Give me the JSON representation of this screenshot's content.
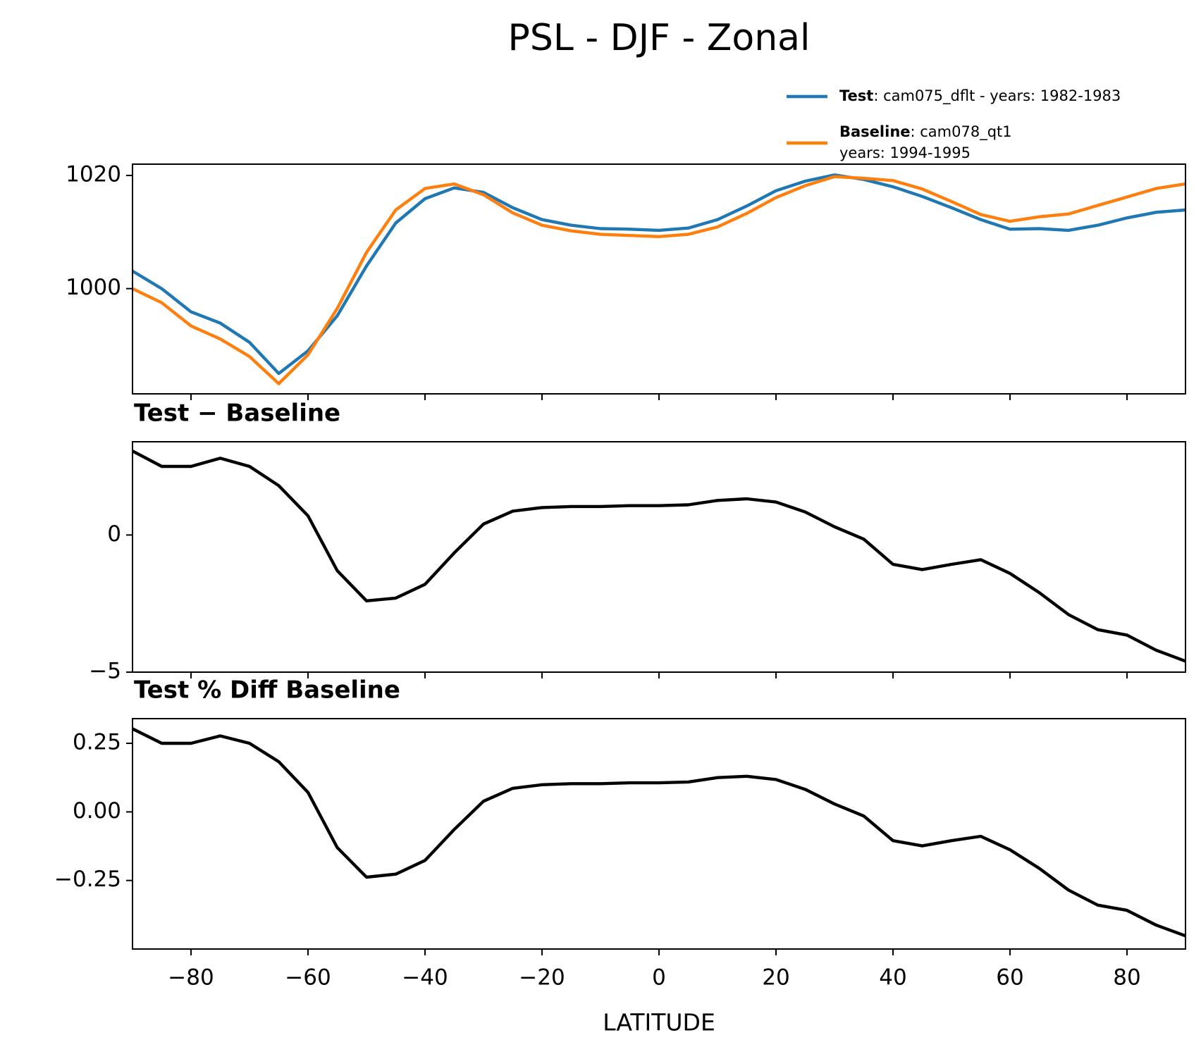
{
  "title": "PSL - DJF - Zonal",
  "chart_data": [
    {
      "type": "line",
      "x": [
        -90,
        -85,
        -80,
        -75,
        -70,
        -65,
        -60,
        -55,
        -50,
        -45,
        -40,
        -35,
        -30,
        -25,
        -20,
        -15,
        -10,
        -5,
        0,
        5,
        10,
        15,
        20,
        25,
        30,
        35,
        40,
        45,
        50,
        55,
        60,
        65,
        70,
        75,
        80,
        85,
        90
      ],
      "series": [
        {
          "name": "Test",
          "label": [
            ": cam075_dflt - years: 1982-1983"
          ],
          "color": "#1f77b4",
          "values": [
            1003.1,
            1000,
            995.9,
            993.9,
            990.5,
            985,
            989,
            995.2,
            1004,
            1011.6,
            1015.9,
            1017.8,
            1017,
            1014.3,
            1012.2,
            1011.2,
            1010.6,
            1010.5,
            1010.3,
            1010.7,
            1012.2,
            1014.6,
            1017.3,
            1019,
            1020.1,
            1019.3,
            1018,
            1016.3,
            1014.3,
            1012.2,
            1010.5,
            1010.6,
            1010.3,
            1011.2,
            1012.5,
            1013.5,
            1013.9
          ]
        },
        {
          "name": "Baseline",
          "label": [
            ": cam078_qt1",
            "years: 1994-1995"
          ],
          "color": "#ff7f0e",
          "values": [
            1000,
            997.5,
            993.4,
            991.1,
            988,
            983.2,
            988.3,
            996.5,
            1006.4,
            1013.9,
            1017.7,
            1018.5,
            1016.6,
            1013.4,
            1011.2,
            1010.2,
            1009.6,
            1009.4,
            1009.2,
            1009.6,
            1010.9,
            1013.3,
            1016.1,
            1018.2,
            1019.8,
            1019.5,
            1019.1,
            1017.6,
            1015.4,
            1013.1,
            1011.9,
            1012.7,
            1013.2,
            1014.7,
            1016.2,
            1017.7,
            1018.5
          ]
        }
      ],
      "ylim": [
        981.4,
        1022
      ],
      "yticks": [
        1000,
        1020
      ]
    },
    {
      "type": "line",
      "subtitle": "Test − Baseline",
      "x": [
        -90,
        -85,
        -80,
        -75,
        -70,
        -65,
        -60,
        -55,
        -50,
        -45,
        -40,
        -35,
        -30,
        -25,
        -20,
        -15,
        -10,
        -5,
        0,
        5,
        10,
        15,
        20,
        25,
        30,
        35,
        40,
        45,
        50,
        55,
        60,
        65,
        70,
        75,
        80,
        85,
        90
      ],
      "series": [
        {
          "color": "#000000",
          "values": [
            3.06,
            2.5,
            2.5,
            2.8,
            2.5,
            1.8,
            0.7,
            -1.3,
            -2.4,
            -2.3,
            -1.8,
            -0.65,
            0.4,
            0.87,
            1.0,
            1.04,
            1.04,
            1.07,
            1.07,
            1.1,
            1.26,
            1.32,
            1.2,
            0.84,
            0.3,
            -0.15,
            -1.07,
            -1.26,
            -1.07,
            -0.9,
            -1.4,
            -2.1,
            -2.9,
            -3.45,
            -3.65,
            -4.2,
            -4.6
          ]
        }
      ],
      "ylim": [
        -5,
        3.4
      ],
      "yticks": [
        {
          "value": -5,
          "label": "−5"
        },
        0
      ]
    },
    {
      "type": "line",
      "subtitle": "Test % Diff Baseline",
      "xlabel": "LATITUDE",
      "x": [
        -90,
        -85,
        -80,
        -75,
        -70,
        -65,
        -60,
        -55,
        -50,
        -45,
        -40,
        -35,
        -30,
        -25,
        -20,
        -15,
        -10,
        -5,
        0,
        5,
        10,
        15,
        20,
        25,
        30,
        35,
        40,
        45,
        50,
        55,
        60,
        65,
        70,
        75,
        80,
        85,
        90
      ],
      "series": [
        {
          "color": "#000000",
          "values": [
            0.303,
            0.25,
            0.25,
            0.277,
            0.25,
            0.183,
            0.071,
            -0.13,
            -0.238,
            -0.227,
            -0.177,
            -0.064,
            0.039,
            0.086,
            0.099,
            0.103,
            0.103,
            0.106,
            0.106,
            0.109,
            0.125,
            0.13,
            0.118,
            0.082,
            0.029,
            -0.015,
            -0.105,
            -0.124,
            -0.105,
            -0.089,
            -0.138,
            -0.206,
            -0.285,
            -0.34,
            -0.359,
            -0.413,
            -0.452
          ]
        }
      ],
      "xlim": [
        -90,
        90
      ],
      "xticks": [
        {
          "value": -80,
          "label": "−80"
        },
        {
          "value": -60,
          "label": "−60"
        },
        {
          "value": -40,
          "label": "−40"
        },
        {
          "value": -20,
          "label": "−20"
        },
        0,
        20,
        40,
        60,
        80
      ],
      "ylim": [
        -0.5,
        0.34
      ],
      "yticks": [
        {
          "value": -0.25,
          "label": "−0.25"
        },
        {
          "value": 0,
          "label": "0.00"
        },
        0.25
      ]
    }
  ]
}
